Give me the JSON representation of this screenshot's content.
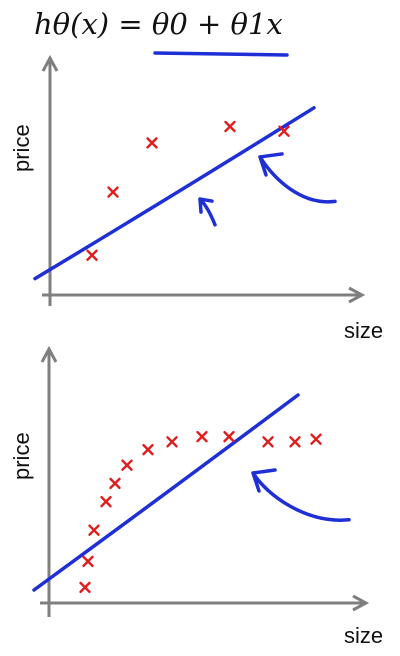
{
  "header": {
    "formula": "hθ(x) = θ0 + θ1x"
  },
  "colors": {
    "axis": "#7f7f7f",
    "pen": "#1f2fd6",
    "points": "#e21b1b",
    "text": "#111111"
  },
  "chart_data": [
    {
      "type": "scatter",
      "xlabel": "size",
      "ylabel": "price",
      "grid": false,
      "legend": "none",
      "x_range": [
        0,
        10
      ],
      "y_range": [
        0,
        10
      ],
      "points": [
        {
          "x": 1.4,
          "y": 1.7
        },
        {
          "x": 2.1,
          "y": 4.4
        },
        {
          "x": 3.4,
          "y": 6.5
        },
        {
          "x": 6.0,
          "y": 7.2
        },
        {
          "x": 7.8,
          "y": 7.0
        }
      ],
      "fit_line": {
        "from": {
          "x": -0.5,
          "y": 0.7
        },
        "to": {
          "x": 8.8,
          "y": 8.0
        }
      },
      "annotations": [
        {
          "type": "arrow-left",
          "from": {
            "x": 9.5,
            "y": 4.0
          },
          "to": {
            "x": 7.0,
            "y": 5.9
          }
        },
        {
          "type": "arrow-small",
          "from": {
            "x": 5.5,
            "y": 3.0
          },
          "to": {
            "x": 5.0,
            "y": 4.1
          }
        }
      ]
    },
    {
      "type": "scatter",
      "xlabel": "size",
      "ylabel": "price",
      "grid": false,
      "legend": "none",
      "x_range": [
        0,
        10
      ],
      "y_range": [
        0,
        10
      ],
      "points": [
        {
          "x": 1.2,
          "y": 0.6
        },
        {
          "x": 1.3,
          "y": 1.6
        },
        {
          "x": 1.5,
          "y": 2.8
        },
        {
          "x": 1.9,
          "y": 3.9
        },
        {
          "x": 2.2,
          "y": 4.6
        },
        {
          "x": 2.6,
          "y": 5.3
        },
        {
          "x": 3.3,
          "y": 5.9
        },
        {
          "x": 4.1,
          "y": 6.2
        },
        {
          "x": 5.1,
          "y": 6.4
        },
        {
          "x": 6.0,
          "y": 6.4
        },
        {
          "x": 7.3,
          "y": 6.2
        },
        {
          "x": 8.2,
          "y": 6.2
        },
        {
          "x": 8.9,
          "y": 6.3
        }
      ],
      "fit_line": {
        "from": {
          "x": -0.5,
          "y": 0.5
        },
        "to": {
          "x": 8.3,
          "y": 8.0
        }
      },
      "annotations": [
        {
          "type": "arrow-left",
          "from": {
            "x": 10.0,
            "y": 3.2
          },
          "to": {
            "x": 6.8,
            "y": 5.0
          }
        }
      ]
    }
  ]
}
